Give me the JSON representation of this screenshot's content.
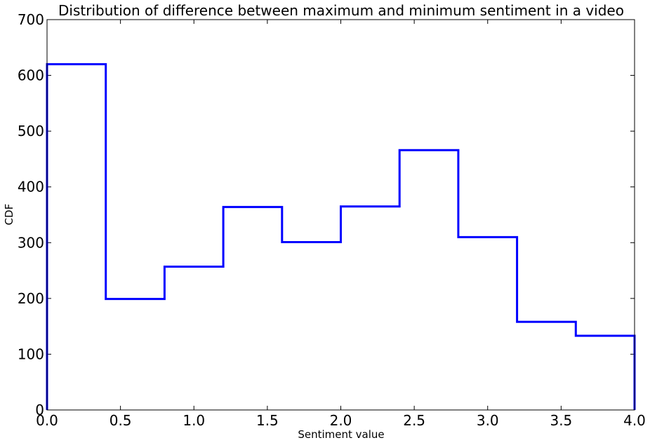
{
  "chart_data": {
    "type": "histogram-step",
    "title": "Distribution of difference between maximum and minimum sentiment in a video",
    "xlabel": "Sentiment value",
    "ylabel": "CDF",
    "xlim": [
      0.0,
      4.0
    ],
    "ylim": [
      0,
      700
    ],
    "x_ticks": [
      0.0,
      0.5,
      1.0,
      1.5,
      2.0,
      2.5,
      3.0,
      3.5,
      4.0
    ],
    "x_tick_labels": [
      "0.0",
      "0.5",
      "1.0",
      "1.5",
      "2.0",
      "2.5",
      "3.0",
      "3.5",
      "4.0"
    ],
    "y_ticks": [
      0,
      100,
      200,
      300,
      400,
      500,
      600,
      700
    ],
    "y_tick_labels": [
      "0",
      "100",
      "200",
      "300",
      "400",
      "500",
      "600",
      "700"
    ],
    "grid": false,
    "series": [
      {
        "name": "difference",
        "color": "#0000ff",
        "bin_edges": [
          0.0,
          0.4,
          0.8,
          1.2,
          1.6,
          2.0,
          2.4,
          2.8,
          3.2,
          3.6,
          4.0
        ],
        "values": [
          620,
          199,
          257,
          364,
          301,
          365,
          466,
          310,
          158,
          133
        ]
      }
    ]
  }
}
